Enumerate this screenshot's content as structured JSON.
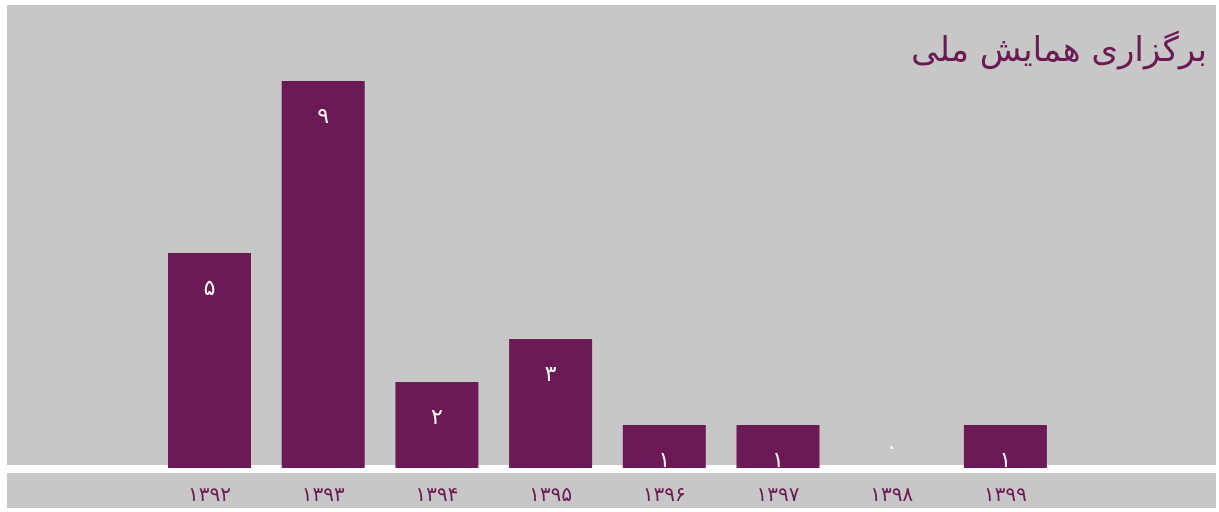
{
  "title": "برگزاری همایش ملی",
  "chart_data": {
    "type": "bar",
    "categories": [
      "۱۳۹۲",
      "۱۳۹۳",
      "۱۳۹۴",
      "۱۳۹۵",
      "۱۳۹۶",
      "۱۳۹۷",
      "۱۳۹۸",
      "۱۳۹۹"
    ],
    "values": [
      5,
      9,
      2,
      3,
      1,
      1,
      0,
      1
    ],
    "value_labels": [
      "۵",
      "۹",
      "۲",
      "۳",
      "۱",
      "۱",
      "۰",
      "۱"
    ],
    "title": "برگزاری همایش ملی",
    "xlabel": "",
    "ylabel": "",
    "ylim": [
      0,
      10
    ],
    "grid": false,
    "colors": {
      "bar": "#6b1a55",
      "background": "#c7c8c6",
      "value_label": "#ffffff",
      "tick_label": "#6b1a55"
    }
  }
}
